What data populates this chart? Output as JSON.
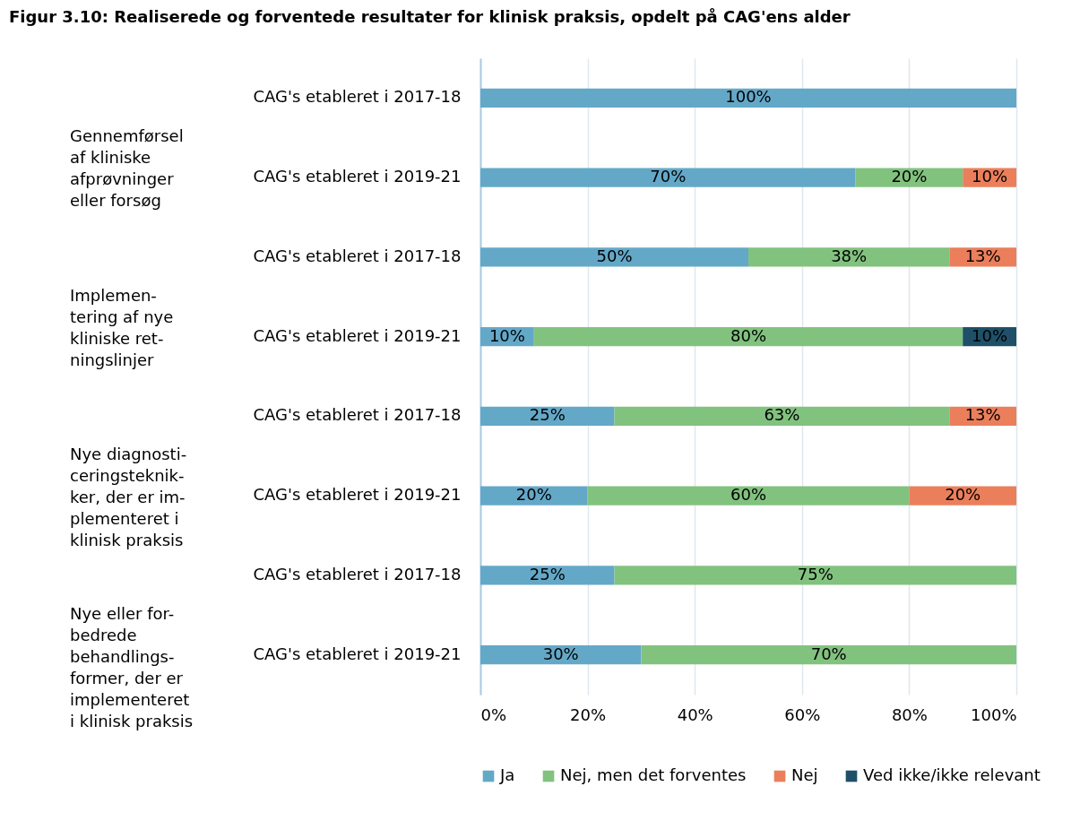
{
  "chart_data": {
    "type": "bar",
    "orientation": "horizontal",
    "stacked": true,
    "title": "Figur 3.10: Realiserede og forventede resultater for klinisk praksis, opdelt på CAG'ens alder",
    "categories": [
      "CAG's etableret i 2017-18",
      "CAG's etableret i 2019-21",
      "CAG's etableret i 2017-18",
      "CAG's etableret i 2019-21",
      "CAG's etableret i 2017-18",
      "CAG's etableret i 2019-21",
      "CAG's etableret i 2017-18",
      "CAG's etableret i 2019-21"
    ],
    "annotations": [
      "Gennemførsel\naf kliniske\nafprøvninger\neller forsøg",
      "Implemen-\ntering af nye\nkliniske ret-\nningslinjer",
      "Nye diagnosti-\nceringsteknik-\nker, der er im-\nplementeret i\nklinisk praksis",
      "Nye eller for-\nbedrede\nbehandlings-\nformer, der er\nimplementeret\ni klinisk praksis"
    ],
    "series": [
      {
        "name": "Ja",
        "color": "#64a8c8",
        "values": [
          100,
          70,
          50,
          10,
          25,
          20,
          25,
          30
        ],
        "value_labels": [
          "100%",
          "70%",
          "50%",
          "10%",
          "25%",
          "20%",
          "25%",
          "30%"
        ]
      },
      {
        "name": "Nej, men det forventes",
        "color": "#82c27f",
        "values": [
          null,
          20,
          37.5,
          80,
          62.5,
          60,
          75,
          70
        ],
        "value_labels": [
          null,
          "20%",
          "38%",
          "80%",
          "63%",
          "60%",
          "75%",
          "70%"
        ]
      },
      {
        "name": "Nej",
        "color": "#eb7f5b",
        "values": [
          null,
          10,
          12.5,
          null,
          12.5,
          20,
          null,
          null
        ],
        "value_labels": [
          null,
          "10%",
          "13%",
          null,
          "13%",
          "20%",
          null,
          null
        ]
      },
      {
        "name": "Ved ikke/ikke relevant",
        "color": "#1f5068",
        "values": [
          null,
          null,
          null,
          10,
          null,
          null,
          null,
          null
        ],
        "value_labels": [
          null,
          null,
          null,
          "10%",
          null,
          null,
          null,
          null
        ]
      }
    ],
    "xlim": [
      0,
      100
    ],
    "xticks": [
      {
        "value": 0,
        "label": "0%"
      },
      {
        "value": 20,
        "label": "20%"
      },
      {
        "value": 40,
        "label": "40%"
      },
      {
        "value": 60,
        "label": "60%"
      },
      {
        "value": 80,
        "label": "80%"
      },
      {
        "value": 100,
        "label": "100%"
      }
    ],
    "grid": "x",
    "legend": "bottom"
  }
}
